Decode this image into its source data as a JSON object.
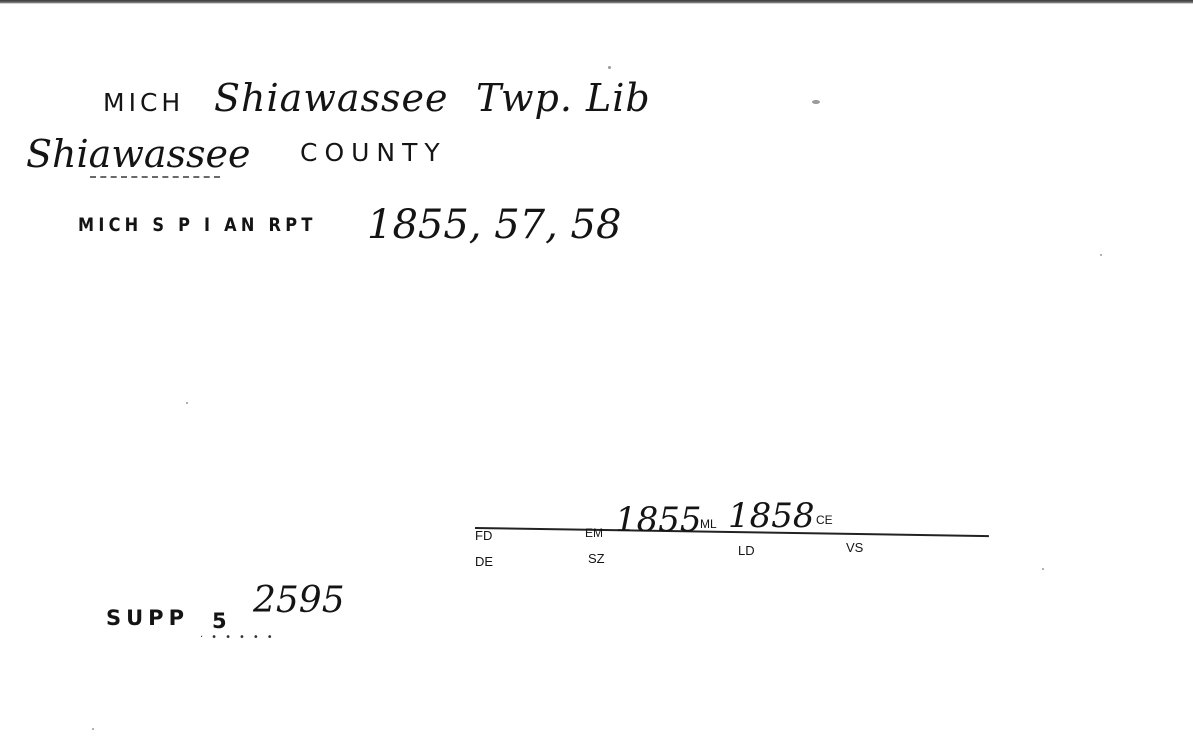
{
  "card": {
    "heading": {
      "state_abbr": "MICH",
      "library_name": "Shiawassee",
      "library_suffix": "Twp. Lib"
    },
    "county": {
      "name": "Shiawassee",
      "label": "COUNTY"
    },
    "source_line": {
      "code": "MICH S P I AN RPT",
      "years": "1855, 57, 58"
    },
    "form_fields": {
      "fd_label": "FD",
      "em_label": "EM",
      "em_value": "1855",
      "ml_label": "ML",
      "ml_value": "1858",
      "ce_label": "CE",
      "de_label": "DE",
      "sz_label": "SZ",
      "ld_label": "LD",
      "vs_label": "VS"
    },
    "supplement": {
      "label": "SUPP",
      "number": "5",
      "value": "2595"
    }
  }
}
